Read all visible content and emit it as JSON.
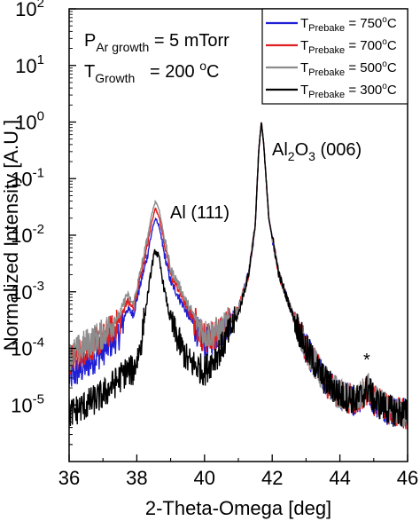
{
  "chart_data": {
    "type": "line",
    "xlabel": "2-Theta-Omega [deg]",
    "ylabel": "Normalized Intensity [A.U.]",
    "xlim": [
      36,
      46
    ],
    "ylim_log10": [
      -6,
      2
    ],
    "yscale": "log",
    "x_ticks": [
      "36",
      "38",
      "40",
      "42",
      "44",
      "46"
    ],
    "y_ticks": [
      {
        "base": "10",
        "exp": "2"
      },
      {
        "base": "10",
        "exp": "1"
      },
      {
        "base": "10",
        "exp": "0"
      },
      {
        "base": "10",
        "exp": "-1"
      },
      {
        "base": "10",
        "exp": "-2"
      },
      {
        "base": "10",
        "exp": "-3"
      },
      {
        "base": "10",
        "exp": "-4"
      },
      {
        "base": "10",
        "exp": "-5"
      }
    ],
    "legend_position": "top-right",
    "series": [
      {
        "name": "T_Prebake = 750°C",
        "label_main": "T",
        "label_sub": "Prebake",
        "label_rest": " = 750",
        "label_unit": "o",
        "label_tail": "C",
        "color": "#1f1fd6",
        "points": [
          [
            36.0,
            3e-05
          ],
          [
            36.5,
            5e-05
          ],
          [
            37.0,
            9e-05
          ],
          [
            37.5,
            0.00018
          ],
          [
            37.7,
            0.0005
          ],
          [
            37.9,
            0.0004
          ],
          [
            38.1,
            0.0013
          ],
          [
            38.3,
            0.004
          ],
          [
            38.45,
            0.012
          ],
          [
            38.55,
            0.02
          ],
          [
            38.65,
            0.015
          ],
          [
            38.8,
            0.005
          ],
          [
            39.0,
            0.0015
          ],
          [
            39.2,
            0.0009
          ],
          [
            39.5,
            0.0004
          ],
          [
            40.0,
            0.00012
          ],
          [
            40.5,
            0.0002
          ],
          [
            41.0,
            0.0005
          ],
          [
            41.3,
            0.002
          ],
          [
            41.5,
            0.015
          ],
          [
            41.6,
            0.3
          ],
          [
            41.68,
            1.0
          ],
          [
            41.75,
            0.4
          ],
          [
            41.9,
            0.02
          ],
          [
            42.2,
            0.002
          ],
          [
            42.6,
            0.0004
          ],
          [
            43.0,
            0.0001
          ],
          [
            43.5,
            3e-05
          ],
          [
            44.0,
            1.5e-05
          ],
          [
            44.5,
            1.2e-05
          ],
          [
            44.85,
            2e-05
          ],
          [
            45.0,
            1.2e-05
          ],
          [
            45.5,
            8e-06
          ],
          [
            46.0,
            7e-06
          ]
        ]
      },
      {
        "name": "T_Prebake = 700°C",
        "label_main": "T",
        "label_sub": "Prebake",
        "label_rest": " = 700",
        "label_unit": "o",
        "label_tail": "C",
        "color": "#e02020",
        "points": [
          [
            36.0,
            6e-05
          ],
          [
            36.5,
            0.0001
          ],
          [
            37.0,
            0.00015
          ],
          [
            37.5,
            0.0003
          ],
          [
            37.7,
            0.0007
          ],
          [
            37.9,
            0.0005
          ],
          [
            38.1,
            0.0018
          ],
          [
            38.3,
            0.006
          ],
          [
            38.45,
            0.018
          ],
          [
            38.55,
            0.03
          ],
          [
            38.65,
            0.022
          ],
          [
            38.8,
            0.008
          ],
          [
            39.0,
            0.002
          ],
          [
            39.2,
            0.0012
          ],
          [
            39.5,
            0.0005
          ],
          [
            40.0,
            0.00015
          ],
          [
            40.5,
            0.0002
          ],
          [
            41.0,
            0.0005
          ],
          [
            41.3,
            0.002
          ],
          [
            41.5,
            0.015
          ],
          [
            41.6,
            0.3
          ],
          [
            41.68,
            1.0
          ],
          [
            41.75,
            0.4
          ],
          [
            41.9,
            0.02
          ],
          [
            42.2,
            0.002
          ],
          [
            42.6,
            0.0004
          ],
          [
            43.0,
            0.0001
          ],
          [
            43.5,
            3e-05
          ],
          [
            44.0,
            1.5e-05
          ],
          [
            44.5,
            1.2e-05
          ],
          [
            44.85,
            2e-05
          ],
          [
            45.0,
            1.2e-05
          ],
          [
            45.5,
            8e-06
          ],
          [
            46.0,
            7e-06
          ]
        ]
      },
      {
        "name": "T_Prebake = 500°C",
        "label_main": "T",
        "label_sub": "Prebake",
        "label_rest": " = 500",
        "label_unit": "o",
        "label_tail": "C",
        "color": "#8c8c8c",
        "points": [
          [
            36.0,
            7e-05
          ],
          [
            36.5,
            0.00012
          ],
          [
            37.0,
            0.00018
          ],
          [
            37.5,
            0.0004
          ],
          [
            37.7,
            0.0009
          ],
          [
            37.9,
            0.0006
          ],
          [
            38.1,
            0.0022
          ],
          [
            38.3,
            0.008
          ],
          [
            38.45,
            0.025
          ],
          [
            38.55,
            0.04
          ],
          [
            38.65,
            0.03
          ],
          [
            38.8,
            0.01
          ],
          [
            39.0,
            0.0025
          ],
          [
            39.2,
            0.0015
          ],
          [
            39.5,
            0.0006
          ],
          [
            40.0,
            0.00018
          ],
          [
            40.5,
            0.0002
          ],
          [
            41.0,
            0.0005
          ],
          [
            41.3,
            0.002
          ],
          [
            41.5,
            0.015
          ],
          [
            41.6,
            0.3
          ],
          [
            41.68,
            1.0
          ],
          [
            41.75,
            0.4
          ],
          [
            41.9,
            0.02
          ],
          [
            42.2,
            0.002
          ],
          [
            42.6,
            0.0004
          ],
          [
            43.0,
            0.0001
          ],
          [
            43.5,
            3e-05
          ],
          [
            44.0,
            1.5e-05
          ],
          [
            44.5,
            1.2e-05
          ],
          [
            44.85,
            2e-05
          ],
          [
            45.0,
            1.2e-05
          ],
          [
            45.5,
            8e-06
          ],
          [
            46.0,
            7e-06
          ]
        ]
      },
      {
        "name": "T_Prebake = 300°C",
        "label_main": "T",
        "label_sub": "Prebake",
        "label_rest": " = 300",
        "label_unit": "o",
        "label_tail": "C",
        "color": "#000000",
        "points": [
          [
            36.0,
            7e-06
          ],
          [
            36.5,
            1e-05
          ],
          [
            37.0,
            1.5e-05
          ],
          [
            37.5,
            3e-05
          ],
          [
            37.7,
            4e-05
          ],
          [
            37.9,
            4e-05
          ],
          [
            38.1,
            0.0001
          ],
          [
            38.3,
            0.0007
          ],
          [
            38.45,
            0.003
          ],
          [
            38.55,
            0.0055
          ],
          [
            38.65,
            0.004
          ],
          [
            38.8,
            0.0012
          ],
          [
            39.0,
            0.0003
          ],
          [
            39.2,
            0.00015
          ],
          [
            39.5,
            6e-05
          ],
          [
            40.0,
            4e-05
          ],
          [
            40.5,
            0.0001
          ],
          [
            41.0,
            0.0004
          ],
          [
            41.3,
            0.002
          ],
          [
            41.5,
            0.015
          ],
          [
            41.6,
            0.3
          ],
          [
            41.68,
            1.0
          ],
          [
            41.75,
            0.4
          ],
          [
            41.9,
            0.02
          ],
          [
            42.2,
            0.002
          ],
          [
            42.6,
            0.0004
          ],
          [
            43.0,
            0.0001
          ],
          [
            43.5,
            3e-05
          ],
          [
            44.0,
            1.5e-05
          ],
          [
            44.5,
            1.2e-05
          ],
          [
            44.85,
            2e-05
          ],
          [
            45.0,
            1.2e-05
          ],
          [
            45.5,
            8e-06
          ],
          [
            46.0,
            7e-06
          ]
        ]
      }
    ],
    "annotations": {
      "growth_pressure": {
        "prefix": "P",
        "sub": "Ar growth",
        "rest": " = 5 mTorr"
      },
      "growth_temp": {
        "prefix": "T",
        "sub": "Growth",
        "rest": "   = 200 ",
        "unit": "o",
        "tail": "C"
      },
      "al_peak": "Al (111)",
      "al2o3_peak": {
        "a": "Al",
        "a_sub": "2",
        "b": "O",
        "b_sub": "3",
        "rest": " (006)"
      },
      "star": "*"
    }
  }
}
